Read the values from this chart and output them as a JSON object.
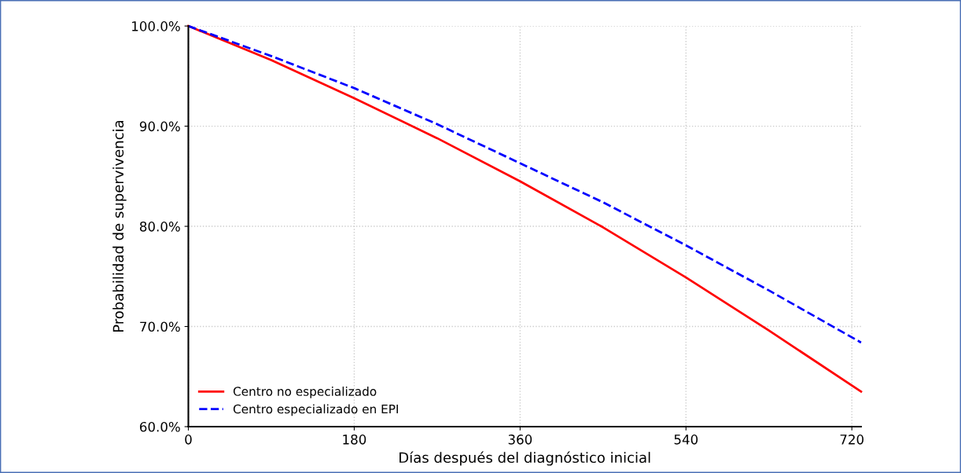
{
  "chart_data": {
    "type": "line",
    "xlabel": "Días después del diagnóstico inicial",
    "ylabel": "Probabilidad de supervivencia",
    "xlim": [
      0,
      730
    ],
    "xticks": [
      0,
      180,
      360,
      540,
      720
    ],
    "ylim": [
      60,
      100
    ],
    "yticks": [
      {
        "value": 60,
        "label": "60.0%"
      },
      {
        "value": 70,
        "label": "70.0%"
      },
      {
        "value": 80,
        "label": "80.0%"
      },
      {
        "value": 90,
        "label": "90.0%"
      },
      {
        "value": 100,
        "label": "100.0%"
      }
    ],
    "grid": true,
    "legend": "bottom left",
    "series": [
      {
        "name": "Centro no especializado",
        "color": "#ff0000",
        "line_style": "solid",
        "x": [
          0,
          90,
          180,
          270,
          360,
          450,
          540,
          630,
          730
        ],
        "values": [
          100,
          96.6,
          92.8,
          88.8,
          84.5,
          79.9,
          74.9,
          69.6,
          63.5
        ]
      },
      {
        "name": "Centro especializado en EPI",
        "color": "#0000ff",
        "line_style": "dashed",
        "x": [
          0,
          90,
          180,
          270,
          360,
          450,
          540,
          630,
          730
        ],
        "values": [
          100,
          97.0,
          93.8,
          90.2,
          86.3,
          82.4,
          78.1,
          73.6,
          68.4
        ]
      }
    ]
  }
}
